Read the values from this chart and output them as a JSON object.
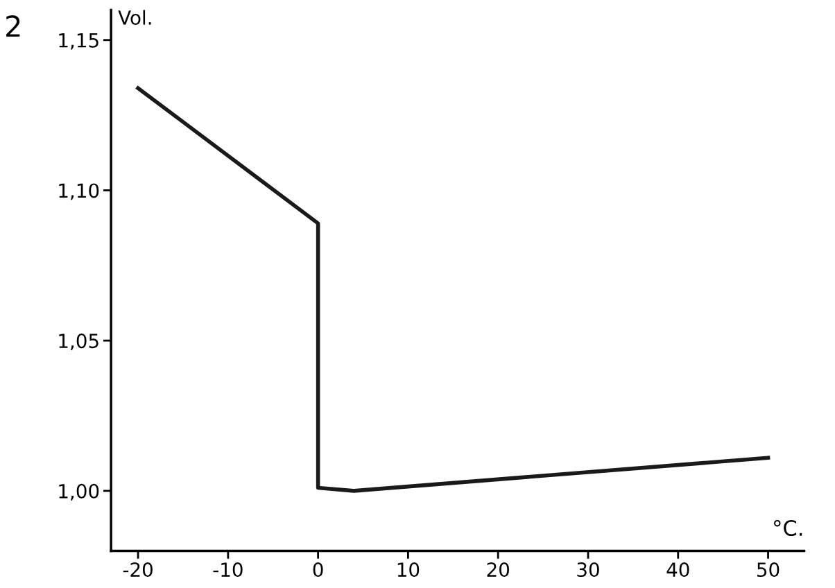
{
  "chart_data": {
    "type": "line",
    "xlabel": "°C.",
    "ylabel": "Vol.",
    "annotations": [
      "2"
    ],
    "x": [
      -20,
      0,
      0,
      4,
      50
    ],
    "series": [
      {
        "color": "#1a1a1a",
        "values": [
          1.134,
          1.089,
          1.001,
          1.0,
          1.011
        ]
      }
    ],
    "xlim": [
      -23,
      54
    ],
    "ylim": [
      0.98,
      1.16
    ],
    "xticks": [
      -20,
      -10,
      0,
      10,
      20,
      30,
      40,
      50
    ],
    "yticks": [
      {
        "value": 1.0,
        "label": "1,00"
      },
      {
        "value": 1.05,
        "label": "1,05"
      },
      {
        "value": 1.1,
        "label": "1,10"
      },
      {
        "value": 1.15,
        "label": "1,15"
      }
    ],
    "grid": false,
    "legend": false,
    "marker": "none",
    "line_style": "solid"
  }
}
